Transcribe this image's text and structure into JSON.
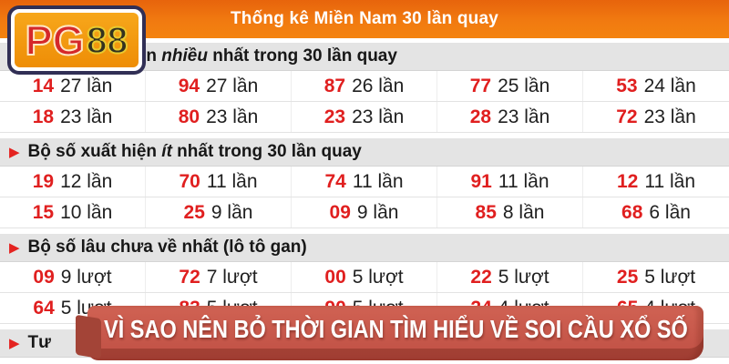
{
  "header": {
    "title": "Thống kê Miền Nam 30 lần quay"
  },
  "logo": {
    "pg": "PG",
    "eights": "88"
  },
  "ui": {
    "bullet": "▶"
  },
  "sections": [
    {
      "title": {
        "prefix": "Bộ số xuất hiện ",
        "em": "nhiều",
        "suffix": " nhất trong 30 lần quay"
      },
      "rows": [
        [
          {
            "num": "14",
            "freq": "27 lần"
          },
          {
            "num": "94",
            "freq": "27 lần"
          },
          {
            "num": "87",
            "freq": "26 lần"
          },
          {
            "num": "77",
            "freq": "25 lần"
          },
          {
            "num": "53",
            "freq": "24 lần"
          }
        ],
        [
          {
            "num": "18",
            "freq": "23 lần"
          },
          {
            "num": "80",
            "freq": "23 lần"
          },
          {
            "num": "23",
            "freq": "23 lần"
          },
          {
            "num": "28",
            "freq": "23 lần"
          },
          {
            "num": "72",
            "freq": "23 lần"
          }
        ]
      ]
    },
    {
      "title": {
        "prefix": "Bộ số xuất hiện ",
        "em": "ít",
        "suffix": " nhất trong 30 lần quay"
      },
      "rows": [
        [
          {
            "num": "19",
            "freq": "12 lần"
          },
          {
            "num": "70",
            "freq": "11 lần"
          },
          {
            "num": "74",
            "freq": "11 lần"
          },
          {
            "num": "91",
            "freq": "11 lần"
          },
          {
            "num": "12",
            "freq": "11 lần"
          }
        ],
        [
          {
            "num": "15",
            "freq": "10 lần"
          },
          {
            "num": "25",
            "freq": "9 lần"
          },
          {
            "num": "09",
            "freq": "9 lần"
          },
          {
            "num": "85",
            "freq": "8 lần"
          },
          {
            "num": "68",
            "freq": "6 lần"
          }
        ]
      ]
    },
    {
      "title": {
        "prefix": "Bộ số lâu chưa về nhất ",
        "em": "(lô tô gan)",
        "suffix": ""
      },
      "rows": [
        [
          {
            "num": "09",
            "freq": "9 lượt"
          },
          {
            "num": "72",
            "freq": "7 lượt"
          },
          {
            "num": "00",
            "freq": "5 lượt"
          },
          {
            "num": "22",
            "freq": "5 lượt"
          },
          {
            "num": "25",
            "freq": "5 lượt"
          }
        ],
        [
          {
            "num": "64",
            "freq": "5 lượt"
          },
          {
            "num": "83",
            "freq": "5 lượt"
          },
          {
            "num": "90",
            "freq": "5 lượt"
          },
          {
            "num": "24",
            "freq": "4 lượt"
          },
          {
            "num": "65",
            "freq": "4 lượt"
          }
        ]
      ]
    },
    {
      "title": {
        "prefix": "Tư",
        "em": "",
        "suffix": ""
      },
      "rows": []
    }
  ],
  "banner": {
    "text": "VÌ SAO NÊN BỎ THỜI GIAN TÌM HIỂU VỀ SOI CẦU XỔ SỐ"
  },
  "colors": {
    "header_orange": "#f17a10",
    "number_red": "#e01f1f",
    "banner_red": "#c6574a",
    "section_gray": "#e4e4e4"
  }
}
